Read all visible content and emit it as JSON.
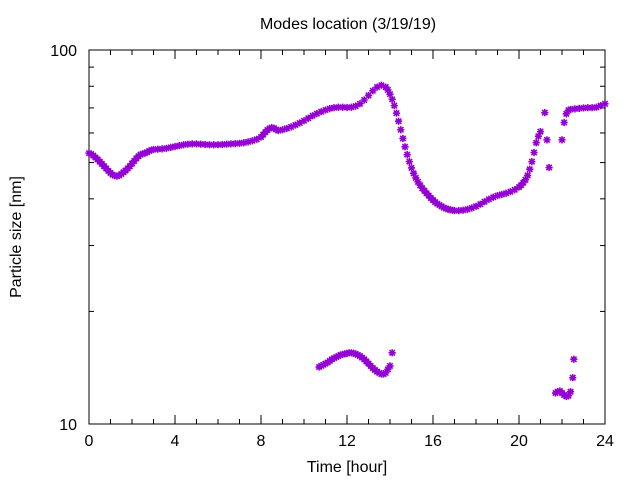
{
  "chart_data": {
    "type": "scatter",
    "title": "Modes location (3/19/19)",
    "xlabel": "Time [hour]",
    "ylabel": "Particle size [nm]",
    "xlim": [
      0,
      24
    ],
    "ylim": [
      10,
      100
    ],
    "y_scale": "log",
    "x_ticks": [
      0,
      4,
      8,
      12,
      16,
      20,
      24
    ],
    "x_tick_labels": [
      "0",
      "4",
      "8",
      "12",
      "16",
      "20",
      "24"
    ],
    "y_ticks": [
      10,
      100
    ],
    "y_tick_labels": [
      "10",
      "100"
    ],
    "grid": false,
    "legend": "none",
    "marker_color": "#9400d3",
    "marker": "asterisk",
    "series": [
      {
        "points": [
          [
            0.0,
            53.0
          ],
          [
            0.1,
            52.7
          ],
          [
            0.2,
            52.2
          ],
          [
            0.3,
            51.6
          ],
          [
            0.4,
            51.0
          ],
          [
            0.5,
            50.3
          ],
          [
            0.6,
            49.6
          ],
          [
            0.7,
            48.9
          ],
          [
            0.8,
            48.2
          ],
          [
            0.9,
            47.5
          ],
          [
            1.0,
            46.9
          ],
          [
            1.1,
            46.4
          ],
          [
            1.2,
            46.1
          ],
          [
            1.3,
            46.0
          ],
          [
            1.4,
            46.2
          ],
          [
            1.5,
            46.6
          ],
          [
            1.6,
            47.1
          ],
          [
            1.7,
            47.6
          ],
          [
            1.8,
            48.2
          ],
          [
            1.9,
            48.9
          ],
          [
            2.0,
            49.7
          ],
          [
            2.1,
            50.5
          ],
          [
            2.2,
            51.3
          ],
          [
            2.3,
            52.0
          ],
          [
            2.4,
            52.5
          ],
          [
            2.5,
            52.8
          ],
          [
            2.6,
            53.0
          ],
          [
            2.7,
            53.3
          ],
          [
            2.8,
            53.7
          ],
          [
            2.9,
            54.0
          ],
          [
            3.0,
            54.2
          ],
          [
            3.2,
            54.3
          ],
          [
            3.4,
            54.4
          ],
          [
            3.6,
            54.6
          ],
          [
            3.8,
            54.9
          ],
          [
            4.0,
            55.2
          ],
          [
            4.2,
            55.5
          ],
          [
            4.4,
            55.8
          ],
          [
            4.6,
            56.0
          ],
          [
            4.8,
            56.1
          ],
          [
            5.0,
            56.1
          ],
          [
            5.2,
            56.0
          ],
          [
            5.4,
            55.9
          ],
          [
            5.6,
            55.8
          ],
          [
            5.8,
            55.8
          ],
          [
            6.0,
            55.8
          ],
          [
            6.2,
            55.9
          ],
          [
            6.4,
            56.0
          ],
          [
            6.6,
            56.1
          ],
          [
            6.8,
            56.2
          ],
          [
            7.0,
            56.3
          ],
          [
            7.2,
            56.5
          ],
          [
            7.4,
            56.8
          ],
          [
            7.6,
            57.2
          ],
          [
            7.8,
            57.7
          ],
          [
            8.0,
            58.5
          ],
          [
            8.1,
            59.4
          ],
          [
            8.2,
            60.3
          ],
          [
            8.3,
            61.1
          ],
          [
            8.4,
            61.7
          ],
          [
            8.5,
            62.0
          ],
          [
            8.6,
            61.8
          ],
          [
            8.7,
            61.3
          ],
          [
            8.8,
            60.9
          ],
          [
            9.0,
            61.2
          ],
          [
            9.2,
            61.7
          ],
          [
            9.4,
            62.3
          ],
          [
            9.6,
            63.0
          ],
          [
            9.8,
            63.8
          ],
          [
            10.0,
            64.7
          ],
          [
            10.2,
            65.7
          ],
          [
            10.4,
            66.7
          ],
          [
            10.6,
            67.6
          ],
          [
            10.8,
            68.4
          ],
          [
            11.0,
            69.1
          ],
          [
            11.2,
            69.7
          ],
          [
            11.4,
            70.1
          ],
          [
            11.6,
            70.3
          ],
          [
            11.8,
            70.3
          ],
          [
            12.0,
            70.2
          ],
          [
            12.2,
            70.3
          ],
          [
            12.4,
            70.8
          ],
          [
            12.6,
            71.8
          ],
          [
            12.8,
            73.5
          ],
          [
            13.0,
            75.6
          ],
          [
            13.2,
            77.8
          ],
          [
            13.4,
            79.6
          ],
          [
            13.6,
            80.5
          ],
          [
            13.8,
            79.6
          ],
          [
            13.9,
            78.2
          ],
          [
            14.0,
            76.2
          ],
          [
            14.1,
            73.8
          ],
          [
            14.2,
            71.0
          ],
          [
            14.3,
            67.8
          ],
          [
            14.4,
            64.5
          ],
          [
            14.5,
            61.2
          ],
          [
            14.6,
            58.0
          ],
          [
            14.7,
            55.1
          ],
          [
            14.8,
            52.5
          ],
          [
            14.9,
            50.3
          ],
          [
            15.0,
            48.4
          ],
          [
            15.1,
            46.8
          ],
          [
            15.2,
            45.5
          ],
          [
            15.3,
            44.4
          ],
          [
            15.4,
            43.5
          ],
          [
            15.5,
            42.7
          ],
          [
            15.6,
            42.0
          ],
          [
            15.7,
            41.4
          ],
          [
            15.8,
            40.8
          ],
          [
            15.9,
            40.2
          ],
          [
            16.0,
            39.7
          ],
          [
            16.1,
            39.2
          ],
          [
            16.2,
            38.8
          ],
          [
            16.3,
            38.5
          ],
          [
            16.4,
            38.2
          ],
          [
            16.5,
            37.9
          ],
          [
            16.6,
            37.7
          ],
          [
            16.7,
            37.5
          ],
          [
            16.8,
            37.4
          ],
          [
            16.9,
            37.3
          ],
          [
            17.0,
            37.2
          ],
          [
            17.2,
            37.2
          ],
          [
            17.4,
            37.3
          ],
          [
            17.6,
            37.5
          ],
          [
            17.8,
            37.8
          ],
          [
            18.0,
            38.2
          ],
          [
            18.2,
            38.7
          ],
          [
            18.4,
            39.3
          ],
          [
            18.6,
            39.9
          ],
          [
            18.8,
            40.4
          ],
          [
            19.0,
            40.8
          ],
          [
            19.2,
            41.1
          ],
          [
            19.4,
            41.4
          ],
          [
            19.6,
            41.8
          ],
          [
            19.8,
            42.3
          ],
          [
            20.0,
            43.0
          ],
          [
            20.1,
            43.5
          ],
          [
            20.2,
            44.2
          ],
          [
            20.3,
            45.0
          ],
          [
            20.4,
            46.2
          ],
          [
            20.5,
            48.0
          ],
          [
            20.6,
            50.3
          ],
          [
            20.7,
            53.2
          ],
          [
            20.8,
            56.5
          ],
          [
            20.9,
            58.8
          ],
          [
            21.0,
            60.5
          ],
          [
            21.2,
            68.0
          ],
          [
            21.4,
            48.5
          ],
          [
            21.3,
            57.5
          ],
          [
            22.0,
            57.5
          ],
          [
            22.1,
            64.0
          ],
          [
            22.2,
            67.5
          ],
          [
            22.3,
            69.0
          ],
          [
            22.4,
            69.4
          ],
          [
            22.6,
            69.6
          ],
          [
            22.8,
            69.8
          ],
          [
            23.0,
            70.0
          ],
          [
            23.2,
            70.1
          ],
          [
            23.4,
            70.1
          ],
          [
            23.6,
            70.3
          ],
          [
            23.8,
            71.0
          ],
          [
            24.0,
            71.8
          ]
        ]
      },
      {
        "points": [
          [
            10.7,
            14.2
          ],
          [
            10.8,
            14.3
          ],
          [
            10.9,
            14.4
          ],
          [
            11.0,
            14.5
          ],
          [
            11.1,
            14.6
          ],
          [
            11.2,
            14.75
          ],
          [
            11.3,
            14.9
          ],
          [
            11.4,
            15.0
          ],
          [
            11.5,
            15.1
          ],
          [
            11.6,
            15.2
          ],
          [
            11.7,
            15.3
          ],
          [
            11.8,
            15.35
          ],
          [
            11.9,
            15.4
          ],
          [
            12.0,
            15.45
          ],
          [
            12.1,
            15.5
          ],
          [
            12.2,
            15.5
          ],
          [
            12.3,
            15.45
          ],
          [
            12.4,
            15.4
          ],
          [
            12.5,
            15.3
          ],
          [
            12.6,
            15.2
          ],
          [
            12.7,
            15.05
          ],
          [
            12.8,
            14.9
          ],
          [
            12.9,
            14.7
          ],
          [
            13.0,
            14.5
          ],
          [
            13.1,
            14.3
          ],
          [
            13.2,
            14.1
          ],
          [
            13.3,
            13.95
          ],
          [
            13.4,
            13.8
          ],
          [
            13.5,
            13.7
          ],
          [
            13.6,
            13.6
          ],
          [
            13.7,
            13.6
          ],
          [
            13.8,
            13.7
          ],
          [
            13.9,
            14.0
          ],
          [
            14.0,
            14.3
          ],
          [
            14.1,
            15.5
          ]
        ]
      },
      {
        "points": [
          [
            21.7,
            12.1
          ],
          [
            21.8,
            12.2
          ],
          [
            21.9,
            12.25
          ],
          [
            22.0,
            12.1
          ],
          [
            22.1,
            11.95
          ],
          [
            22.2,
            11.85
          ],
          [
            22.3,
            11.9
          ],
          [
            22.4,
            12.2
          ],
          [
            22.5,
            13.3
          ],
          [
            22.55,
            14.9
          ]
        ]
      }
    ]
  }
}
